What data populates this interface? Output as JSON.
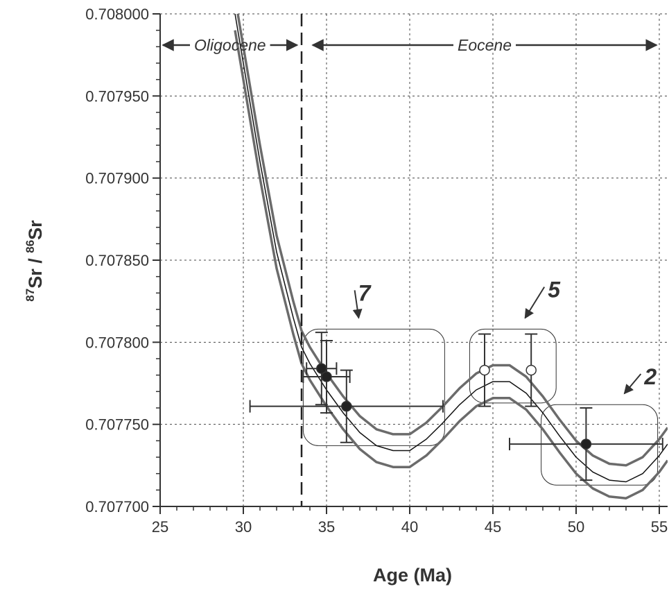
{
  "chart_data": {
    "type": "scatter",
    "xlabel": "Age (Ma)",
    "ylabel": {
      "sup1": "87",
      "main1": "Sr / ",
      "sup2": "86",
      "main2": "Sr"
    },
    "xlim": [
      25,
      55.5
    ],
    "ylim": [
      0.7077,
      0.708
    ],
    "x_ticks": [
      25,
      30,
      35,
      40,
      45,
      50,
      55
    ],
    "x_tick_labels": [
      "25",
      "30",
      "35",
      "40",
      "45",
      "50",
      "55"
    ],
    "y_ticks": [
      0.7077,
      0.70775,
      0.7078,
      0.70785,
      0.7079,
      0.70795,
      0.708
    ],
    "y_tick_labels": [
      "0.707700",
      "0.707750",
      "0.707800",
      "0.707850",
      "0.707900",
      "0.707950",
      "0.708000"
    ],
    "grid": true,
    "boundary": {
      "x": 33.5,
      "style": "dashed"
    },
    "epochs": [
      {
        "label": "Oligocene",
        "x_start": 25,
        "x_end": 33.4
      },
      {
        "label": "Eocene",
        "x_start": 34.0,
        "x_end": 55.0
      }
    ],
    "curve": {
      "name": "",
      "x": [
        29.5,
        30,
        31,
        32,
        33,
        33.5,
        34,
        35,
        36,
        37,
        38,
        39,
        40,
        41,
        42,
        43,
        44,
        45,
        46,
        47,
        48,
        49,
        50,
        51,
        52,
        53,
        54,
        55,
        55.5
      ],
      "y": [
        0.708,
        0.70797,
        0.70791,
        0.707855,
        0.707815,
        0.707797,
        0.707787,
        0.707771,
        0.707757,
        0.707745,
        0.707737,
        0.707734,
        0.707734,
        0.707741,
        0.707751,
        0.707762,
        0.707771,
        0.707776,
        0.707776,
        0.707769,
        0.707757,
        0.707743,
        0.70773,
        0.707721,
        0.707716,
        0.707715,
        0.70772,
        0.707731,
        0.707738
      ],
      "envelope_halfwidth": 1e-05
    },
    "points": [
      {
        "x": 34.7,
        "y": 0.707784,
        "xerr": 0.9,
        "yerr": 2.2e-05,
        "filled": true
      },
      {
        "x": 35.0,
        "y": 0.707779,
        "xerr": 1.4,
        "yerr": 2.2e-05,
        "filled": true
      },
      {
        "x": 36.2,
        "y": 0.707761,
        "xerr": 5.8,
        "yerr": 2.2e-05,
        "filled": true
      },
      {
        "x": 44.5,
        "y": 0.707783,
        "xerr": 0,
        "yerr": 2.2e-05,
        "filled": false
      },
      {
        "x": 47.3,
        "y": 0.707783,
        "xerr": 0,
        "yerr": 2.2e-05,
        "filled": false
      },
      {
        "x": 50.6,
        "y": 0.707738,
        "xerr": 4.6,
        "yerr": 2.2e-05,
        "filled": true
      }
    ],
    "groups": [
      {
        "label": "7",
        "box": {
          "x0": 33.6,
          "x1": 42.1,
          "y0": 0.707737,
          "y1": 0.707808
        },
        "label_at": {
          "x": 36.9,
          "y": 0.70783
        }
      },
      {
        "label": "5",
        "box": {
          "x0": 43.6,
          "x1": 48.8,
          "y0": 0.707763,
          "y1": 0.707808
        },
        "label_at": {
          "x": 48.3,
          "y": 0.707832
        }
      },
      {
        "label": "2",
        "box": {
          "x0": 47.9,
          "x1": 54.9,
          "y0": 0.707713,
          "y1": 0.707762
        },
        "label_at": {
          "x": 54.1,
          "y": 0.707779
        }
      }
    ],
    "colors": {
      "axis": "#333333",
      "envelope": "#6b6b6b",
      "curve": "#111111",
      "grid": "#444444"
    }
  }
}
